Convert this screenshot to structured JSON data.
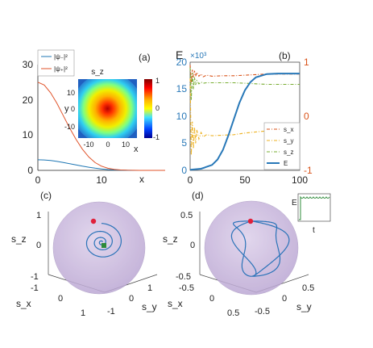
{
  "colors": {
    "psi_minus": "#1f77b4",
    "psi_plus": "#e0532a",
    "sx": "#d95319",
    "sy": "#edb120",
    "sz": "#77ac30",
    "E": "#2878b8",
    "E_axis": "#2878b8",
    "right_axis": "#d95319",
    "sphere": "#c9b8dc",
    "trajectory": "#2a73b8",
    "start_point": "#e0203a",
    "end_point": "#2e8b3a",
    "inset_line": "#2e8b3a"
  },
  "chart_data": [
    {
      "panel_label": "(a)",
      "type": "line",
      "xlabel": "x",
      "ylabel": "",
      "xlim": [
        0,
        20
      ],
      "ylim": [
        0,
        30
      ],
      "xticks": [
        "0",
        "10"
      ],
      "yticks": [
        "0",
        "10",
        "20",
        "30"
      ],
      "legend_position": "top-left",
      "series": [
        {
          "name": "|ψ₋|²",
          "color_key": "psi_minus",
          "x": [
            0,
            1,
            2,
            3,
            4,
            5,
            6,
            7,
            8,
            9,
            10,
            11,
            12,
            13,
            14,
            15,
            16,
            17,
            18,
            19,
            20
          ],
          "values": [
            3.0,
            2.95,
            2.8,
            2.55,
            2.25,
            1.9,
            1.55,
            1.2,
            0.9,
            0.62,
            0.4,
            0.24,
            0.13,
            0.07,
            0.03,
            0.01,
            0,
            0,
            0,
            0,
            0
          ]
        },
        {
          "name": "|ψ₊|²",
          "color_key": "psi_plus",
          "x": [
            0,
            1,
            2,
            3,
            4,
            5,
            6,
            7,
            8,
            9,
            10,
            11,
            12,
            13,
            14,
            15,
            16,
            17,
            18,
            19,
            20
          ],
          "values": [
            25,
            24.2,
            22,
            19,
            15.5,
            12,
            8.8,
            6,
            3.8,
            2.2,
            1.2,
            0.6,
            0.28,
            0.12,
            0.05,
            0.02,
            0,
            0,
            0,
            0,
            0
          ]
        }
      ],
      "inset": {
        "type": "heatmap",
        "title": "s_z",
        "xlabel": "x",
        "ylabel": "y",
        "xticks": [
          "-10",
          "0",
          "10"
        ],
        "yticks": [
          "10",
          "0",
          "-10"
        ],
        "xlim": [
          -15,
          15
        ],
        "ylim": [
          -15,
          15
        ],
        "colorbar_ticks": [
          "1",
          "0",
          "-1"
        ],
        "clim": [
          -1,
          1
        ]
      }
    },
    {
      "panel_label": "(b)",
      "type": "line",
      "ylabel": "E",
      "y_exponent": "×10³",
      "xlim": [
        0,
        100
      ],
      "ylim_left": [
        0,
        20
      ],
      "ylim_right": [
        -1,
        1
      ],
      "xticks": [
        "0",
        "50",
        "100"
      ],
      "yticks_left": [
        "0",
        "5",
        "10",
        "15",
        "20"
      ],
      "yticks_right": [
        "-1",
        "0",
        "1"
      ],
      "legend_position": "lower-right",
      "series": [
        {
          "name": "s_x",
          "axis": "right",
          "style": "dash-dot",
          "color_key": "sx",
          "x": [
            0,
            1,
            2,
            3,
            4,
            5,
            6,
            8,
            10,
            12,
            15,
            20,
            30,
            40,
            50,
            60,
            70,
            80,
            90,
            100
          ],
          "values": [
            0.95,
            0.62,
            0.86,
            0.72,
            0.84,
            0.74,
            0.81,
            0.74,
            0.78,
            0.73,
            0.76,
            0.74,
            0.75,
            0.75,
            0.76,
            0.77,
            0.78,
            0.78,
            0.78,
            0.78
          ]
        },
        {
          "name": "s_y",
          "axis": "right",
          "style": "dash-dot",
          "color_key": "sy",
          "x": [
            0,
            1,
            2,
            3,
            4,
            5,
            6,
            8,
            10,
            12,
            15,
            20,
            30,
            40,
            50,
            60,
            70,
            80,
            90,
            100
          ],
          "values": [
            0.7,
            -0.72,
            -0.1,
            -0.6,
            -0.2,
            -0.5,
            -0.25,
            -0.42,
            -0.3,
            -0.38,
            -0.34,
            -0.36,
            -0.35,
            -0.34,
            -0.31,
            -0.29,
            -0.27,
            -0.26,
            -0.26,
            -0.26
          ]
        },
        {
          "name": "s_z",
          "axis": "right",
          "style": "dash-dot",
          "color_key": "sz",
          "x": [
            0,
            1,
            2,
            3,
            4,
            5,
            6,
            8,
            10,
            12,
            15,
            20,
            30,
            40,
            50,
            60,
            70,
            80,
            90,
            100
          ],
          "values": [
            0.9,
            0.3,
            0.8,
            0.5,
            0.72,
            0.58,
            0.66,
            0.6,
            0.63,
            0.61,
            0.62,
            0.62,
            0.62,
            0.62,
            0.61,
            0.6,
            0.59,
            0.59,
            0.59,
            0.59
          ]
        },
        {
          "name": "E",
          "axis": "left",
          "style": "solid",
          "color_key": "E",
          "x": [
            0,
            10,
            20,
            25,
            30,
            35,
            40,
            45,
            50,
            55,
            60,
            70,
            80,
            90,
            100
          ],
          "values": [
            0.1,
            0.3,
            1.0,
            2.0,
            3.8,
            6.5,
            9.5,
            12.5,
            14.8,
            16.3,
            17.2,
            17.8,
            17.9,
            17.9,
            17.9
          ]
        }
      ]
    },
    {
      "panel_label": "(c)",
      "type": "scatter",
      "xlabel": "s_x",
      "ylabel": "s_y",
      "zlabel": "s_z",
      "xticks": [
        "-1",
        "0",
        "1"
      ],
      "yticks": [
        "-1",
        "0",
        "1"
      ],
      "zticks": [
        "-1",
        "0",
        "1"
      ]
    },
    {
      "panel_label": "(d)",
      "type": "scatter",
      "xlabel": "s_x",
      "ylabel": "s_y",
      "zlabel": "s_z",
      "xticks": [
        "-0.5",
        "0",
        "0.5"
      ],
      "yticks": [
        "-0.5",
        "0",
        "0.5"
      ],
      "zticks": [
        "-0.5",
        "0",
        "0.5"
      ],
      "inset": {
        "xlabel": "t",
        "ylabel": "E"
      }
    }
  ]
}
